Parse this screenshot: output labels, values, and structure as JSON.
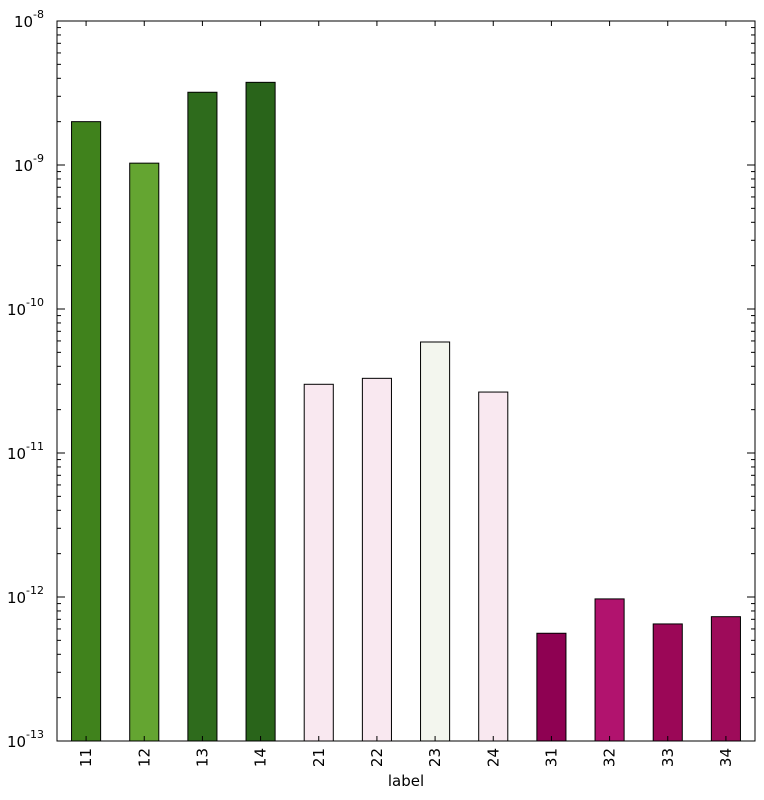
{
  "chart_data": {
    "type": "bar",
    "yscale": "log",
    "xlabel": "label",
    "ylabel": "",
    "title": "",
    "ylim": [
      1e-13,
      1e-08
    ],
    "grid": false,
    "legend": "none",
    "categories": [
      "11",
      "12",
      "13",
      "14",
      "21",
      "22",
      "23",
      "24",
      "31",
      "32",
      "33",
      "34"
    ],
    "values": [
      2e-09,
      1.03e-09,
      3.2e-09,
      3.75e-09,
      3e-11,
      3.3e-11,
      5.9e-11,
      2.65e-11,
      5.6e-13,
      9.7e-13,
      6.5e-13,
      7.3e-13
    ],
    "colors": [
      "#40821c",
      "#64a531",
      "#2e6b1c",
      "#29641a",
      "#f9e8f0",
      "#f9e8f0",
      "#f3f6ee",
      "#f9e8f0",
      "#8e0152",
      "#b1136e",
      "#9b0757",
      "#9e0b5a"
    ],
    "yticks": [
      {
        "value": 1e-13,
        "base": "10",
        "exp": "-13"
      },
      {
        "value": 1e-12,
        "base": "10",
        "exp": "-12"
      },
      {
        "value": 1e-11,
        "base": "10",
        "exp": "-11"
      },
      {
        "value": 1e-10,
        "base": "10",
        "exp": "-10"
      },
      {
        "value": 1e-09,
        "base": "10",
        "exp": "-9"
      },
      {
        "value": 1e-08,
        "base": "10",
        "exp": "-8"
      }
    ]
  }
}
